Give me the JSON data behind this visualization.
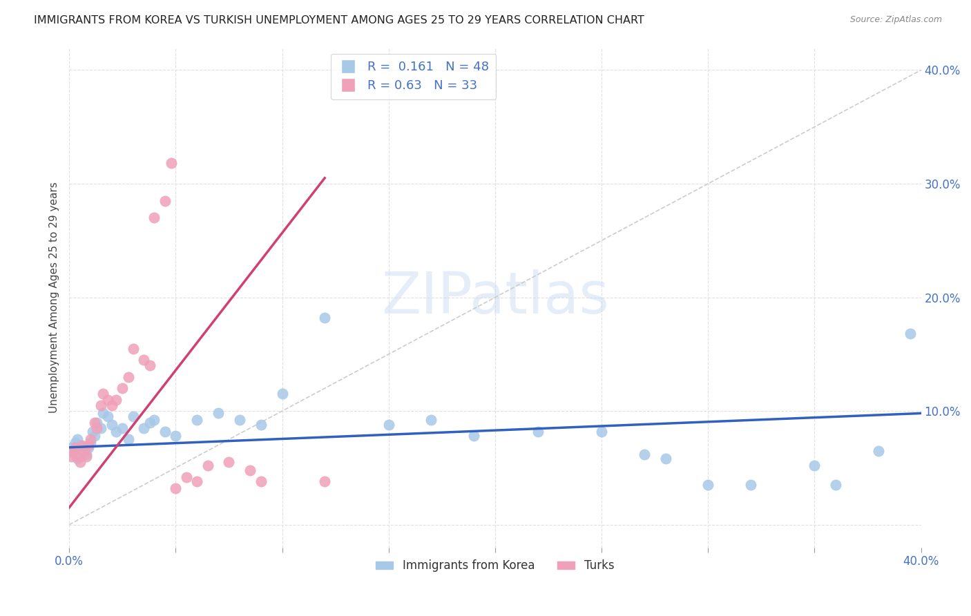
{
  "title": "IMMIGRANTS FROM KOREA VS TURKISH UNEMPLOYMENT AMONG AGES 25 TO 29 YEARS CORRELATION CHART",
  "source": "Source: ZipAtlas.com",
  "ylabel": "Unemployment Among Ages 25 to 29 years",
  "watermark": "ZIPatlas",
  "korea_R": 0.161,
  "korea_N": 48,
  "turks_R": 0.63,
  "turks_N": 33,
  "korea_color": "#a8c8e8",
  "turks_color": "#f0a0b8",
  "korea_line_color": "#3060c0",
  "turks_line_color": "#d04070",
  "diag_line_color": "#cccccc",
  "xlim": [
    0.0,
    0.4
  ],
  "ylim": [
    -0.02,
    0.42
  ],
  "xticks": [
    0.0,
    0.05,
    0.1,
    0.15,
    0.2,
    0.25,
    0.3,
    0.35,
    0.4
  ],
  "yticks": [
    0.0,
    0.1,
    0.2,
    0.3,
    0.4
  ],
  "background_color": "#ffffff",
  "grid_color": "#e0e0e0",
  "korea_x": [
    0.001,
    0.002,
    0.003,
    0.003,
    0.004,
    0.004,
    0.005,
    0.005,
    0.006,
    0.007,
    0.008,
    0.009,
    0.01,
    0.011,
    0.012,
    0.013,
    0.015,
    0.016,
    0.018,
    0.02,
    0.022,
    0.025,
    0.028,
    0.03,
    0.035,
    0.038,
    0.04,
    0.045,
    0.05,
    0.06,
    0.07,
    0.08,
    0.09,
    0.1,
    0.12,
    0.15,
    0.17,
    0.19,
    0.22,
    0.25,
    0.27,
    0.28,
    0.3,
    0.32,
    0.35,
    0.36,
    0.38,
    0.395
  ],
  "korea_y": [
    0.068,
    0.063,
    0.072,
    0.065,
    0.058,
    0.075,
    0.06,
    0.07,
    0.065,
    0.068,
    0.062,
    0.068,
    0.072,
    0.082,
    0.078,
    0.09,
    0.085,
    0.098,
    0.095,
    0.088,
    0.082,
    0.085,
    0.075,
    0.095,
    0.085,
    0.09,
    0.092,
    0.082,
    0.078,
    0.092,
    0.098,
    0.092,
    0.088,
    0.115,
    0.182,
    0.088,
    0.092,
    0.078,
    0.082,
    0.082,
    0.062,
    0.058,
    0.035,
    0.035,
    0.052,
    0.035,
    0.065,
    0.168
  ],
  "turks_x": [
    0.001,
    0.002,
    0.003,
    0.004,
    0.005,
    0.006,
    0.007,
    0.008,
    0.009,
    0.01,
    0.012,
    0.013,
    0.015,
    0.016,
    0.018,
    0.02,
    0.022,
    0.025,
    0.028,
    0.03,
    0.035,
    0.038,
    0.04,
    0.045,
    0.048,
    0.05,
    0.055,
    0.06,
    0.065,
    0.075,
    0.085,
    0.09,
    0.12
  ],
  "turks_y": [
    0.06,
    0.065,
    0.068,
    0.06,
    0.055,
    0.07,
    0.065,
    0.06,
    0.07,
    0.075,
    0.09,
    0.085,
    0.105,
    0.115,
    0.11,
    0.105,
    0.11,
    0.12,
    0.13,
    0.155,
    0.145,
    0.14,
    0.27,
    0.285,
    0.318,
    0.032,
    0.042,
    0.038,
    0.052,
    0.055,
    0.048,
    0.038,
    0.038
  ],
  "korea_line_x": [
    0.0,
    0.4
  ],
  "korea_line_y": [
    0.068,
    0.098
  ],
  "turks_line_x": [
    0.0,
    0.12
  ],
  "turks_line_y": [
    0.015,
    0.305
  ],
  "title_fontsize": 11.5,
  "tick_fontsize": 12,
  "ylabel_fontsize": 11,
  "legend_fontsize": 13
}
